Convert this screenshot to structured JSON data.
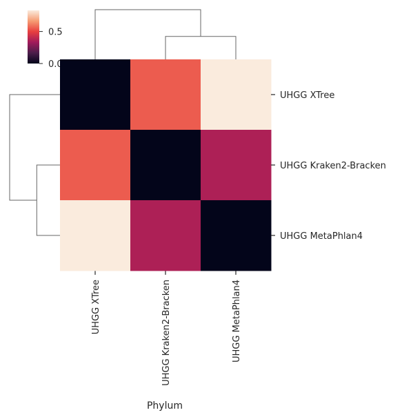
{
  "chart_data": {
    "type": "heatmap",
    "title": "",
    "xlabel": "Phylum",
    "ylabel": "",
    "row_labels": [
      "UHGG XTree",
      "UHGG Kraken2-Bracken",
      "UHGG MetaPhlan4"
    ],
    "col_labels": [
      "UHGG XTree",
      "UHGG Kraken2-Bracken",
      "UHGG MetaPhlan4"
    ],
    "values": [
      [
        0.0,
        0.55,
        0.83
      ],
      [
        0.55,
        0.0,
        0.36
      ],
      [
        0.83,
        0.36,
        0.0
      ]
    ],
    "vmin": 0.0,
    "vmax": 0.83,
    "colorbar": {
      "ticks": [
        0.0,
        0.5
      ],
      "tick_labels": [
        "0.0",
        "0.5"
      ],
      "placement": "top-left"
    },
    "dendrogram": {
      "rows": true,
      "cols": true,
      "linkage": [
        {
          "left": "UHGG Kraken2-Bracken",
          "right": "UHGG MetaPhlan4",
          "height": 0.36
        },
        {
          "left": "UHGG XTree",
          "right": "cluster",
          "height": 0.78
        }
      ]
    },
    "colormap": [
      "#03051a",
      "#4c1d4b",
      "#a11a5b",
      "#e83f3f",
      "#f69c73",
      "#faebdd"
    ]
  }
}
